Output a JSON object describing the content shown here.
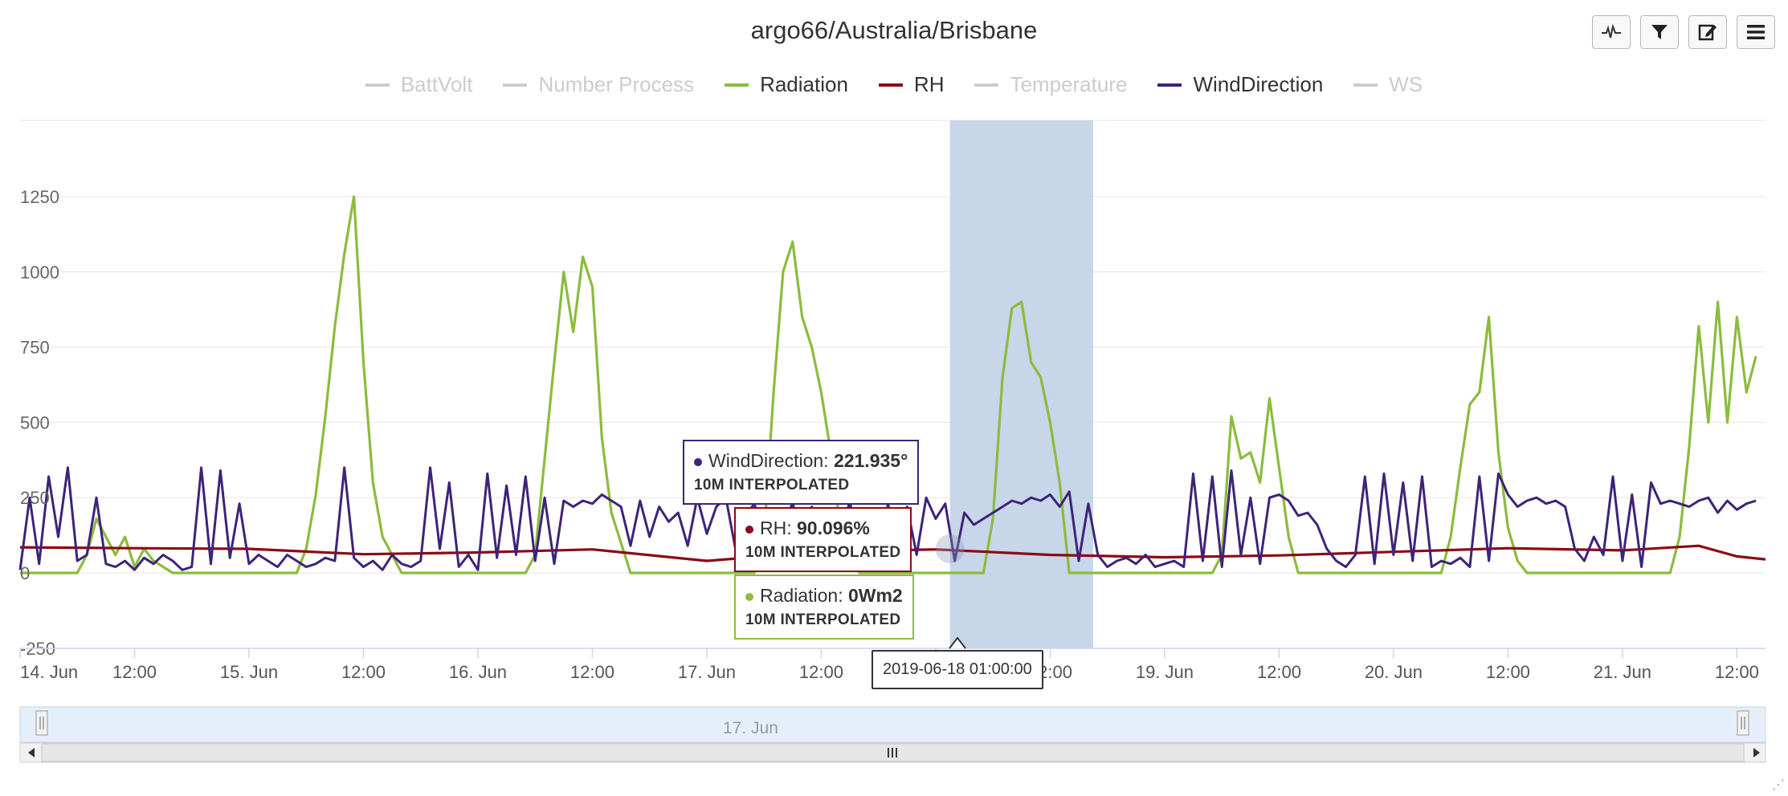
{
  "title": "argo66/Australia/Brisbane",
  "toolbar": [
    {
      "name": "chart-type-button",
      "icon": "pulse-icon"
    },
    {
      "name": "filter-button",
      "icon": "funnel-icon"
    },
    {
      "name": "edit-button",
      "icon": "edit-icon"
    },
    {
      "name": "menu-button",
      "icon": "hamburger-icon"
    }
  ],
  "legend": [
    {
      "label": "BattVolt",
      "color": "#cccccc",
      "visible": false
    },
    {
      "label": "Number Process",
      "color": "#cccccc",
      "visible": false
    },
    {
      "label": "Radiation",
      "color": "#8bbc3c",
      "visible": true
    },
    {
      "label": "RH",
      "color": "#8b0a14",
      "visible": true
    },
    {
      "label": "Temperature",
      "color": "#cccccc",
      "visible": false
    },
    {
      "label": "WindDirection",
      "color": "#3e2378",
      "visible": true
    },
    {
      "label": "WS",
      "color": "#cccccc",
      "visible": false
    }
  ],
  "tooltips": {
    "wind": {
      "name": "WindDirection",
      "value": "221.935°",
      "sub": "10M INTERPOLATED",
      "color": "#3e2378"
    },
    "rh": {
      "name": "RH",
      "value": "90.096%",
      "sub": "10M INTERPOLATED",
      "color": "#8b0a14"
    },
    "rad": {
      "name": "Radiation",
      "value": "0Wm2",
      "sub": "10M INTERPOLATED",
      "color": "#8bbc3c"
    },
    "x": "2019-06-18 01:00:00"
  },
  "navigator": {
    "label": "17. Jun"
  },
  "chart_data": {
    "type": "line",
    "title": "argo66/Australia/Brisbane",
    "x_unit": "hours since 14. Jun 00:00",
    "xlim": [
      0,
      183
    ],
    "ylim": [
      -250,
      1500
    ],
    "yticks": [
      -250,
      0,
      250,
      500,
      750,
      1000,
      1250
    ],
    "ytick_labels": [
      "-250",
      "0",
      "250",
      "500",
      "750",
      "1000",
      "1250"
    ],
    "xticks": [
      0,
      12,
      24,
      36,
      48,
      60,
      72,
      84,
      96,
      108,
      120,
      132,
      144,
      156,
      168,
      180
    ],
    "xtick_labels": [
      "14. Jun",
      "12:00",
      "15. Jun",
      "12:00",
      "16. Jun",
      "12:00",
      "17. Jun",
      "12:00",
      "18. Jun",
      "12:00",
      "19. Jun",
      "12:00",
      "20. Jun",
      "12:00",
      "21. Jun",
      "12:00"
    ],
    "grid": true,
    "legend": "top-center",
    "highlight_band": [
      97.5,
      112.5
    ],
    "series": [
      {
        "name": "Radiation",
        "color": "#8bbc3c",
        "x": [
          0,
          6,
          7,
          8,
          9,
          10,
          11,
          12,
          13,
          14,
          16,
          18,
          24,
          29,
          30,
          31,
          32,
          33,
          34,
          35,
          36,
          37,
          38,
          40,
          48,
          53,
          54,
          55,
          56,
          57,
          58,
          59,
          60,
          61,
          62,
          64,
          72,
          77,
          78,
          79,
          80,
          81,
          82,
          83,
          84,
          85,
          86,
          88,
          96,
          101,
          102,
          103,
          104,
          105,
          106,
          107,
          108,
          109,
          110,
          112,
          120,
          125,
          126,
          127,
          128,
          129,
          130,
          131,
          132,
          133,
          134,
          136,
          144,
          149,
          150,
          151,
          152,
          153,
          154,
          155,
          156,
          157,
          158,
          160,
          168,
          173,
          174,
          175,
          176,
          177,
          178,
          179,
          180,
          181,
          182
        ],
        "y": [
          0,
          0,
          60,
          180,
          120,
          60,
          120,
          20,
          80,
          40,
          0,
          0,
          0,
          0,
          80,
          260,
          520,
          820,
          1060,
          1250,
          700,
          300,
          120,
          0,
          0,
          0,
          60,
          380,
          700,
          1000,
          800,
          1050,
          950,
          450,
          200,
          0,
          0,
          0,
          120,
          600,
          1000,
          1100,
          850,
          750,
          600,
          400,
          150,
          0,
          0,
          0,
          180,
          650,
          880,
          900,
          700,
          650,
          500,
          300,
          0,
          0,
          0,
          0,
          60,
          520,
          380,
          400,
          300,
          580,
          350,
          120,
          0,
          0,
          0,
          0,
          120,
          350,
          560,
          600,
          850,
          400,
          150,
          40,
          0,
          0,
          0,
          0,
          120,
          420,
          820,
          500,
          900,
          500,
          850,
          600,
          720
        ]
      },
      {
        "name": "RH",
        "color": "#8b0a14",
        "x": [
          0,
          12,
          24,
          36,
          48,
          60,
          72,
          84,
          96,
          108,
          120,
          132,
          144,
          156,
          168,
          176,
          180,
          183
        ],
        "y": [
          85,
          82,
          80,
          62,
          68,
          78,
          40,
          70,
          78,
          60,
          52,
          58,
          70,
          82,
          75,
          90,
          55,
          45
        ]
      },
      {
        "name": "WindDirection",
        "color": "#3e2378",
        "x": [
          0,
          1,
          2,
          3,
          4,
          5,
          6,
          7,
          8,
          9,
          10,
          11,
          12,
          13,
          14,
          15,
          16,
          17,
          18,
          19,
          20,
          21,
          22,
          23,
          24,
          25,
          26,
          27,
          28,
          29,
          30,
          31,
          32,
          33,
          34,
          35,
          36,
          37,
          38,
          39,
          40,
          41,
          42,
          43,
          44,
          45,
          46,
          47,
          48,
          49,
          50,
          51,
          52,
          53,
          54,
          55,
          56,
          57,
          58,
          59,
          60,
          61,
          62,
          63,
          64,
          65,
          66,
          67,
          68,
          69,
          70,
          71,
          72,
          73,
          74,
          75,
          76,
          77,
          78,
          79,
          80,
          81,
          82,
          83,
          84,
          85,
          86,
          87,
          88,
          89,
          90,
          91,
          92,
          93,
          94,
          95,
          96,
          97,
          98,
          99,
          100,
          101,
          102,
          103,
          104,
          105,
          106,
          107,
          108,
          109,
          110,
          111,
          112,
          113,
          114,
          115,
          116,
          117,
          118,
          119,
          120,
          121,
          122,
          123,
          124,
          125,
          126,
          127,
          128,
          129,
          130,
          131,
          132,
          133,
          134,
          135,
          136,
          137,
          138,
          139,
          140,
          141,
          142,
          143,
          144,
          145,
          146,
          147,
          148,
          149,
          150,
          151,
          152,
          153,
          154,
          155,
          156,
          157,
          158,
          159,
          160,
          161,
          162,
          163,
          164,
          165,
          166,
          167,
          168,
          169,
          170,
          171,
          172,
          173,
          174,
          175,
          176,
          177,
          178,
          179,
          180,
          181,
          182
        ],
        "y": [
          10,
          250,
          30,
          320,
          120,
          350,
          40,
          60,
          250,
          30,
          20,
          40,
          10,
          50,
          30,
          60,
          40,
          10,
          20,
          350,
          30,
          340,
          50,
          230,
          30,
          60,
          40,
          20,
          60,
          40,
          20,
          30,
          50,
          40,
          350,
          50,
          20,
          40,
          10,
          60,
          30,
          20,
          40,
          350,
          80,
          300,
          20,
          60,
          10,
          330,
          50,
          290,
          60,
          320,
          40,
          250,
          30,
          240,
          220,
          240,
          230,
          260,
          240,
          220,
          90,
          240,
          120,
          220,
          170,
          200,
          90,
          250,
          130,
          220,
          250,
          80,
          190,
          230,
          100,
          60,
          120,
          240,
          40,
          220,
          40,
          200,
          120,
          240,
          40,
          200,
          60,
          230,
          40,
          220,
          60,
          250,
          180,
          230,
          40,
          200,
          160,
          180,
          200,
          220,
          240,
          230,
          250,
          240,
          260,
          220,
          270,
          40,
          230,
          60,
          20,
          40,
          50,
          30,
          60,
          20,
          30,
          40,
          20,
          330,
          40,
          320,
          20,
          340,
          60,
          250,
          30,
          250,
          260,
          240,
          190,
          200,
          160,
          80,
          40,
          20,
          60,
          320,
          30,
          330,
          60,
          300,
          40,
          320,
          20,
          40,
          30,
          50,
          20,
          320,
          40,
          330,
          260,
          220,
          240,
          250,
          230,
          240,
          220,
          80,
          40,
          120,
          60,
          320,
          40,
          260,
          20,
          300,
          230,
          240,
          230,
          220,
          240,
          250,
          200,
          240,
          210,
          230,
          240
        ]
      }
    ]
  }
}
